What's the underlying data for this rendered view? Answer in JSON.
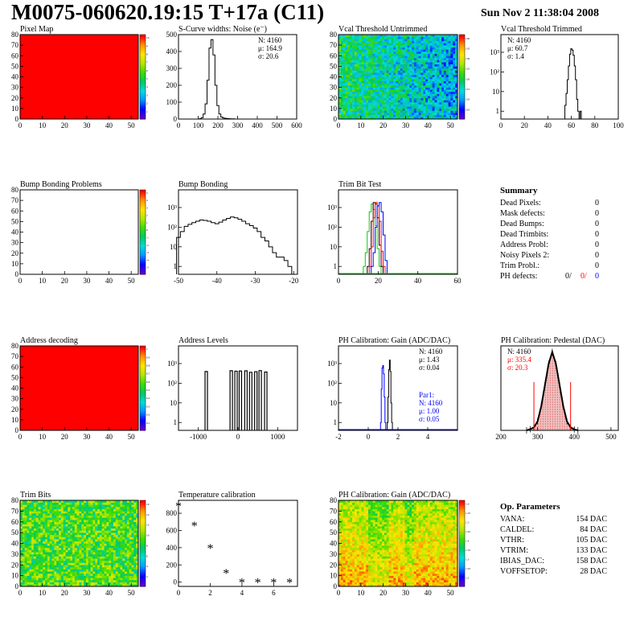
{
  "header": {
    "title": "M0075-060620.19:15 T+17a (C11)",
    "date": "Sun Nov  2 11:38:04 2008"
  },
  "colors": {
    "red": "#ff0000",
    "blue": "#0000ff",
    "green": "#00cc00",
    "black": "#000000"
  },
  "chart_data": [
    {
      "id": "pixel-map",
      "type": "heatmap",
      "title": "Pixel Map",
      "fill": "uniform-red",
      "xticks": [
        "0",
        "10",
        "20",
        "30",
        "40",
        "50"
      ],
      "yticks": [
        "0",
        "10",
        "20",
        "30",
        "40",
        "50",
        "60",
        "70",
        "80"
      ],
      "zticks": [
        "1",
        "2",
        "3",
        "4",
        "5",
        "6",
        "7",
        "8",
        "9",
        "10"
      ]
    },
    {
      "id": "scurve",
      "type": "line",
      "title": "S-Curve widths: Noise (e⁻)",
      "xticks": [
        "0",
        "100",
        "200",
        "300",
        "400",
        "500",
        "600"
      ],
      "yticks": [
        "0",
        "100",
        "200",
        "300",
        "400",
        "500"
      ],
      "xlim": [
        0,
        600
      ],
      "ylim": [
        0,
        500
      ],
      "stats": [
        "N: 4160",
        "μ: 164.9",
        "σ: 20.6"
      ],
      "x": [
        100,
        110,
        120,
        130,
        140,
        150,
        160,
        170,
        180,
        190,
        200,
        210,
        220,
        230,
        240,
        250,
        260,
        270,
        280,
        290,
        300
      ],
      "y": [
        0,
        2,
        8,
        30,
        90,
        230,
        420,
        470,
        380,
        200,
        80,
        30,
        12,
        6,
        4,
        3,
        2,
        1,
        1,
        0,
        0
      ]
    },
    {
      "id": "vcal-untrimmed",
      "type": "heatmap",
      "title": "Vcal Threshold Untrimmed",
      "fill": "noisy-blue-green",
      "xticks": [
        "0",
        "10",
        "20",
        "30",
        "40",
        "50"
      ],
      "yticks": [
        "0",
        "10",
        "20",
        "30",
        "40",
        "50",
        "60",
        "70",
        "80"
      ],
      "zticks": [
        "105",
        "110",
        "115",
        "120",
        "125",
        "130",
        "135",
        "140"
      ]
    },
    {
      "id": "vcal-trimmed",
      "type": "line",
      "title": "Vcal Threshold Trimmed",
      "log_y": true,
      "xticks": [
        "0",
        "20",
        "40",
        "60",
        "80",
        "100"
      ],
      "yticks": [
        "1",
        "10",
        "10²",
        "10³"
      ],
      "xlim": [
        0,
        100
      ],
      "stats": [
        "N: 4160",
        "μ: 60.7",
        "σ: 1.4"
      ],
      "x": [
        54,
        55,
        56,
        57,
        58,
        59,
        60,
        61,
        62,
        63,
        64,
        65,
        66,
        67,
        68,
        69
      ],
      "y": [
        0,
        2,
        8,
        40,
        200,
        800,
        1500,
        1300,
        700,
        200,
        40,
        4,
        1,
        0,
        1,
        0
      ]
    },
    {
      "id": "bump-problems",
      "type": "heatmap",
      "title": "Bump Bonding Problems",
      "fill": "empty",
      "xticks": [
        "0",
        "10",
        "20",
        "30",
        "40",
        "50"
      ],
      "yticks": [
        "0",
        "10",
        "20",
        "30",
        "40",
        "50",
        "60",
        "70",
        "80"
      ],
      "zticks": [
        "-5",
        "-4",
        "-3",
        "-2",
        "-1",
        "0",
        "1",
        "2",
        "3",
        "4",
        "5"
      ]
    },
    {
      "id": "bump-bonding",
      "type": "line",
      "title": "Bump Bonding",
      "log_y": true,
      "xticks": [
        "-50",
        "-40",
        "-30",
        "-20"
      ],
      "yticks": [
        "1",
        "10",
        "10²",
        "10³"
      ],
      "xlim": [
        -50,
        -19
      ],
      "x": [
        -50,
        -49,
        -48,
        -47,
        -46,
        -45,
        -44,
        -43,
        -42,
        -41,
        -40,
        -39,
        -38,
        -37,
        -36,
        -35,
        -34,
        -33,
        -32,
        -31,
        -30,
        -29,
        -28,
        -27,
        -26,
        -25,
        -24,
        -23,
        -22,
        -21
      ],
      "y": [
        30,
        60,
        110,
        140,
        170,
        200,
        230,
        220,
        200,
        170,
        150,
        180,
        230,
        280,
        330,
        300,
        250,
        200,
        150,
        120,
        90,
        60,
        30,
        20,
        10,
        5,
        3,
        3,
        2,
        1
      ]
    },
    {
      "id": "trim-bit-test",
      "type": "line",
      "title": "Trim Bit Test",
      "log_y": true,
      "xticks": [
        "0",
        "20",
        "40",
        "60"
      ],
      "yticks": [
        "1",
        "10",
        "10²",
        "10³"
      ],
      "xlim": [
        0,
        60
      ],
      "series": [
        {
          "color": "#00cc00",
          "x": [
            13,
            14,
            15,
            16,
            17,
            18,
            19,
            20,
            21,
            22
          ],
          "y": [
            1,
            5,
            60,
            600,
            1500,
            800,
            120,
            8,
            1,
            0
          ]
        },
        {
          "color": "#000000",
          "x": [
            15,
            16,
            17,
            18,
            19,
            20,
            21,
            22,
            23
          ],
          "y": [
            1,
            8,
            200,
            1800,
            1500,
            300,
            12,
            1,
            0
          ]
        },
        {
          "color": "#ff0000",
          "x": [
            16,
            17,
            18,
            19,
            20,
            21,
            22,
            23,
            24
          ],
          "y": [
            1,
            10,
            300,
            1800,
            1200,
            200,
            6,
            1,
            0
          ]
        },
        {
          "color": "#0000ff",
          "x": [
            17,
            18,
            19,
            20,
            21,
            22,
            23,
            24,
            25
          ],
          "y": [
            1,
            5,
            100,
            1200,
            1800,
            600,
            40,
            2,
            0
          ]
        }
      ]
    },
    {
      "id": "address-decoding",
      "type": "heatmap",
      "title": "Address decoding",
      "fill": "uniform-red",
      "xticks": [
        "0",
        "10",
        "20",
        "30",
        "40",
        "50"
      ],
      "yticks": [
        "0",
        "10",
        "20",
        "30",
        "40",
        "50",
        "60",
        "70",
        "80"
      ],
      "zticks": [
        "0.1",
        "0.2",
        "0.3",
        "0.4",
        "0.5",
        "0.6",
        "0.7",
        "0.8",
        "0.9",
        "1"
      ]
    },
    {
      "id": "address-levels",
      "type": "line",
      "title": "Address Levels",
      "log_y": true,
      "xticks": [
        "-1000",
        "0",
        "1000"
      ],
      "yticks": [
        "1",
        "10",
        "10²",
        "10³"
      ],
      "xlim": [
        -1500,
        1500
      ],
      "peaks": [
        -800,
        -170,
        -50,
        60,
        200,
        320,
        450,
        560,
        700
      ]
    },
    {
      "id": "ph-gain",
      "type": "line",
      "title": "PH Calibration: Gain (ADC/DAC)",
      "log_y": true,
      "xticks": [
        "-2",
        "0",
        "2",
        "4"
      ],
      "yticks": [
        "1",
        "10",
        "10²",
        "10³"
      ],
      "xlim": [
        -2,
        6
      ],
      "stats": [
        "N: 4160",
        "μ: 1.43",
        "σ: 0.04"
      ],
      "stats2": [
        "Par1:",
        "N: 4160",
        "μ: 1.00",
        "σ: 0.05"
      ],
      "series": [
        {
          "color": "#000000",
          "x": [
            1.3,
            1.35,
            1.4,
            1.45,
            1.5,
            1.55,
            1.6
          ],
          "y": [
            1,
            20,
            500,
            1500,
            400,
            10,
            1
          ]
        },
        {
          "color": "#0000ff",
          "x": [
            0.85,
            0.9,
            0.95,
            1.0,
            1.05,
            1.1,
            1.15
          ],
          "y": [
            1,
            50,
            600,
            800,
            300,
            20,
            1
          ]
        }
      ]
    },
    {
      "id": "ph-pedestal",
      "type": "line",
      "title": "PH Calibration: Pedestal (DAC)",
      "xticks": [
        "200",
        "300",
        "400",
        "500"
      ],
      "xlim": [
        200,
        520
      ],
      "stats": [
        "N: 4160",
        "μ: 335.4",
        "σ: 20.3"
      ],
      "x": [
        270,
        280,
        290,
        300,
        310,
        320,
        330,
        340,
        350,
        360,
        370,
        380,
        390,
        400,
        410
      ],
      "y": [
        0,
        4,
        10,
        30,
        80,
        150,
        220,
        260,
        220,
        150,
        80,
        30,
        10,
        3,
        0
      ],
      "marks": [
        290,
        390
      ]
    },
    {
      "id": "trim-bits",
      "type": "heatmap",
      "title": "Trim Bits",
      "fill": "noisy-yellow-green",
      "xticks": [
        "0",
        "10",
        "20",
        "30",
        "40",
        "50"
      ],
      "yticks": [
        "0",
        "10",
        "20",
        "30",
        "40",
        "50",
        "60",
        "70",
        "80"
      ],
      "zticks": [
        "2",
        "4",
        "6",
        "8",
        "10",
        "12",
        "14",
        "16"
      ]
    },
    {
      "id": "temperature",
      "type": "scatter",
      "title": "Temperature calibration",
      "xticks": [
        "0",
        "2",
        "4",
        "6"
      ],
      "yticks": [
        "0",
        "200",
        "400",
        "600",
        "800"
      ],
      "xlim": [
        0,
        7.5
      ],
      "ylim": [
        -50,
        950
      ],
      "x": [
        0,
        1,
        2,
        3,
        4,
        5,
        6,
        7
      ],
      "y": [
        880,
        650,
        390,
        100,
        -10,
        -10,
        -10,
        -10
      ]
    },
    {
      "id": "ph-gain-map",
      "type": "heatmap",
      "title": "PH Calibration: Gain (ADC/DAC)",
      "fill": "noisy-red-orange",
      "xticks": [
        "0",
        "10",
        "20",
        "30",
        "40",
        "50"
      ],
      "yticks": [
        "0",
        "10",
        "20",
        "30",
        "40",
        "50",
        "60",
        "70",
        "80"
      ],
      "zticks": [
        "1.2",
        "1.25",
        "1.3",
        "1.35",
        "1.4",
        "1.45",
        "1.5",
        "1.55",
        "1.6"
      ]
    }
  ],
  "summary": {
    "title": "Summary",
    "rows": [
      {
        "label": "Dead Pixels:",
        "value": "0"
      },
      {
        "label": "Mask defects:",
        "value": "0"
      },
      {
        "label": "Dead Bumps:",
        "value": "0"
      },
      {
        "label": "Dead Trimbits:",
        "value": "0"
      },
      {
        "label": "Address Probl:",
        "value": "0"
      },
      {
        "label": "Noisy Pixels 2:",
        "value": "0"
      },
      {
        "label": "Trim Probl.:",
        "value": "0"
      }
    ],
    "ph_label": "PH defects:",
    "ph_values": [
      "0/",
      "0/",
      "0"
    ]
  },
  "op_params": {
    "title": "Op. Parameters",
    "rows": [
      {
        "label": "VANA:",
        "value": "154 DAC"
      },
      {
        "label": "CALDEL:",
        "value": "84 DAC"
      },
      {
        "label": "VTHR:",
        "value": "105 DAC"
      },
      {
        "label": "VTRIM:",
        "value": "133 DAC"
      },
      {
        "label": "IBIAS_DAC:",
        "value": "158 DAC"
      },
      {
        "label": "VOFFSETOP:",
        "value": "28 DAC"
      }
    ]
  }
}
